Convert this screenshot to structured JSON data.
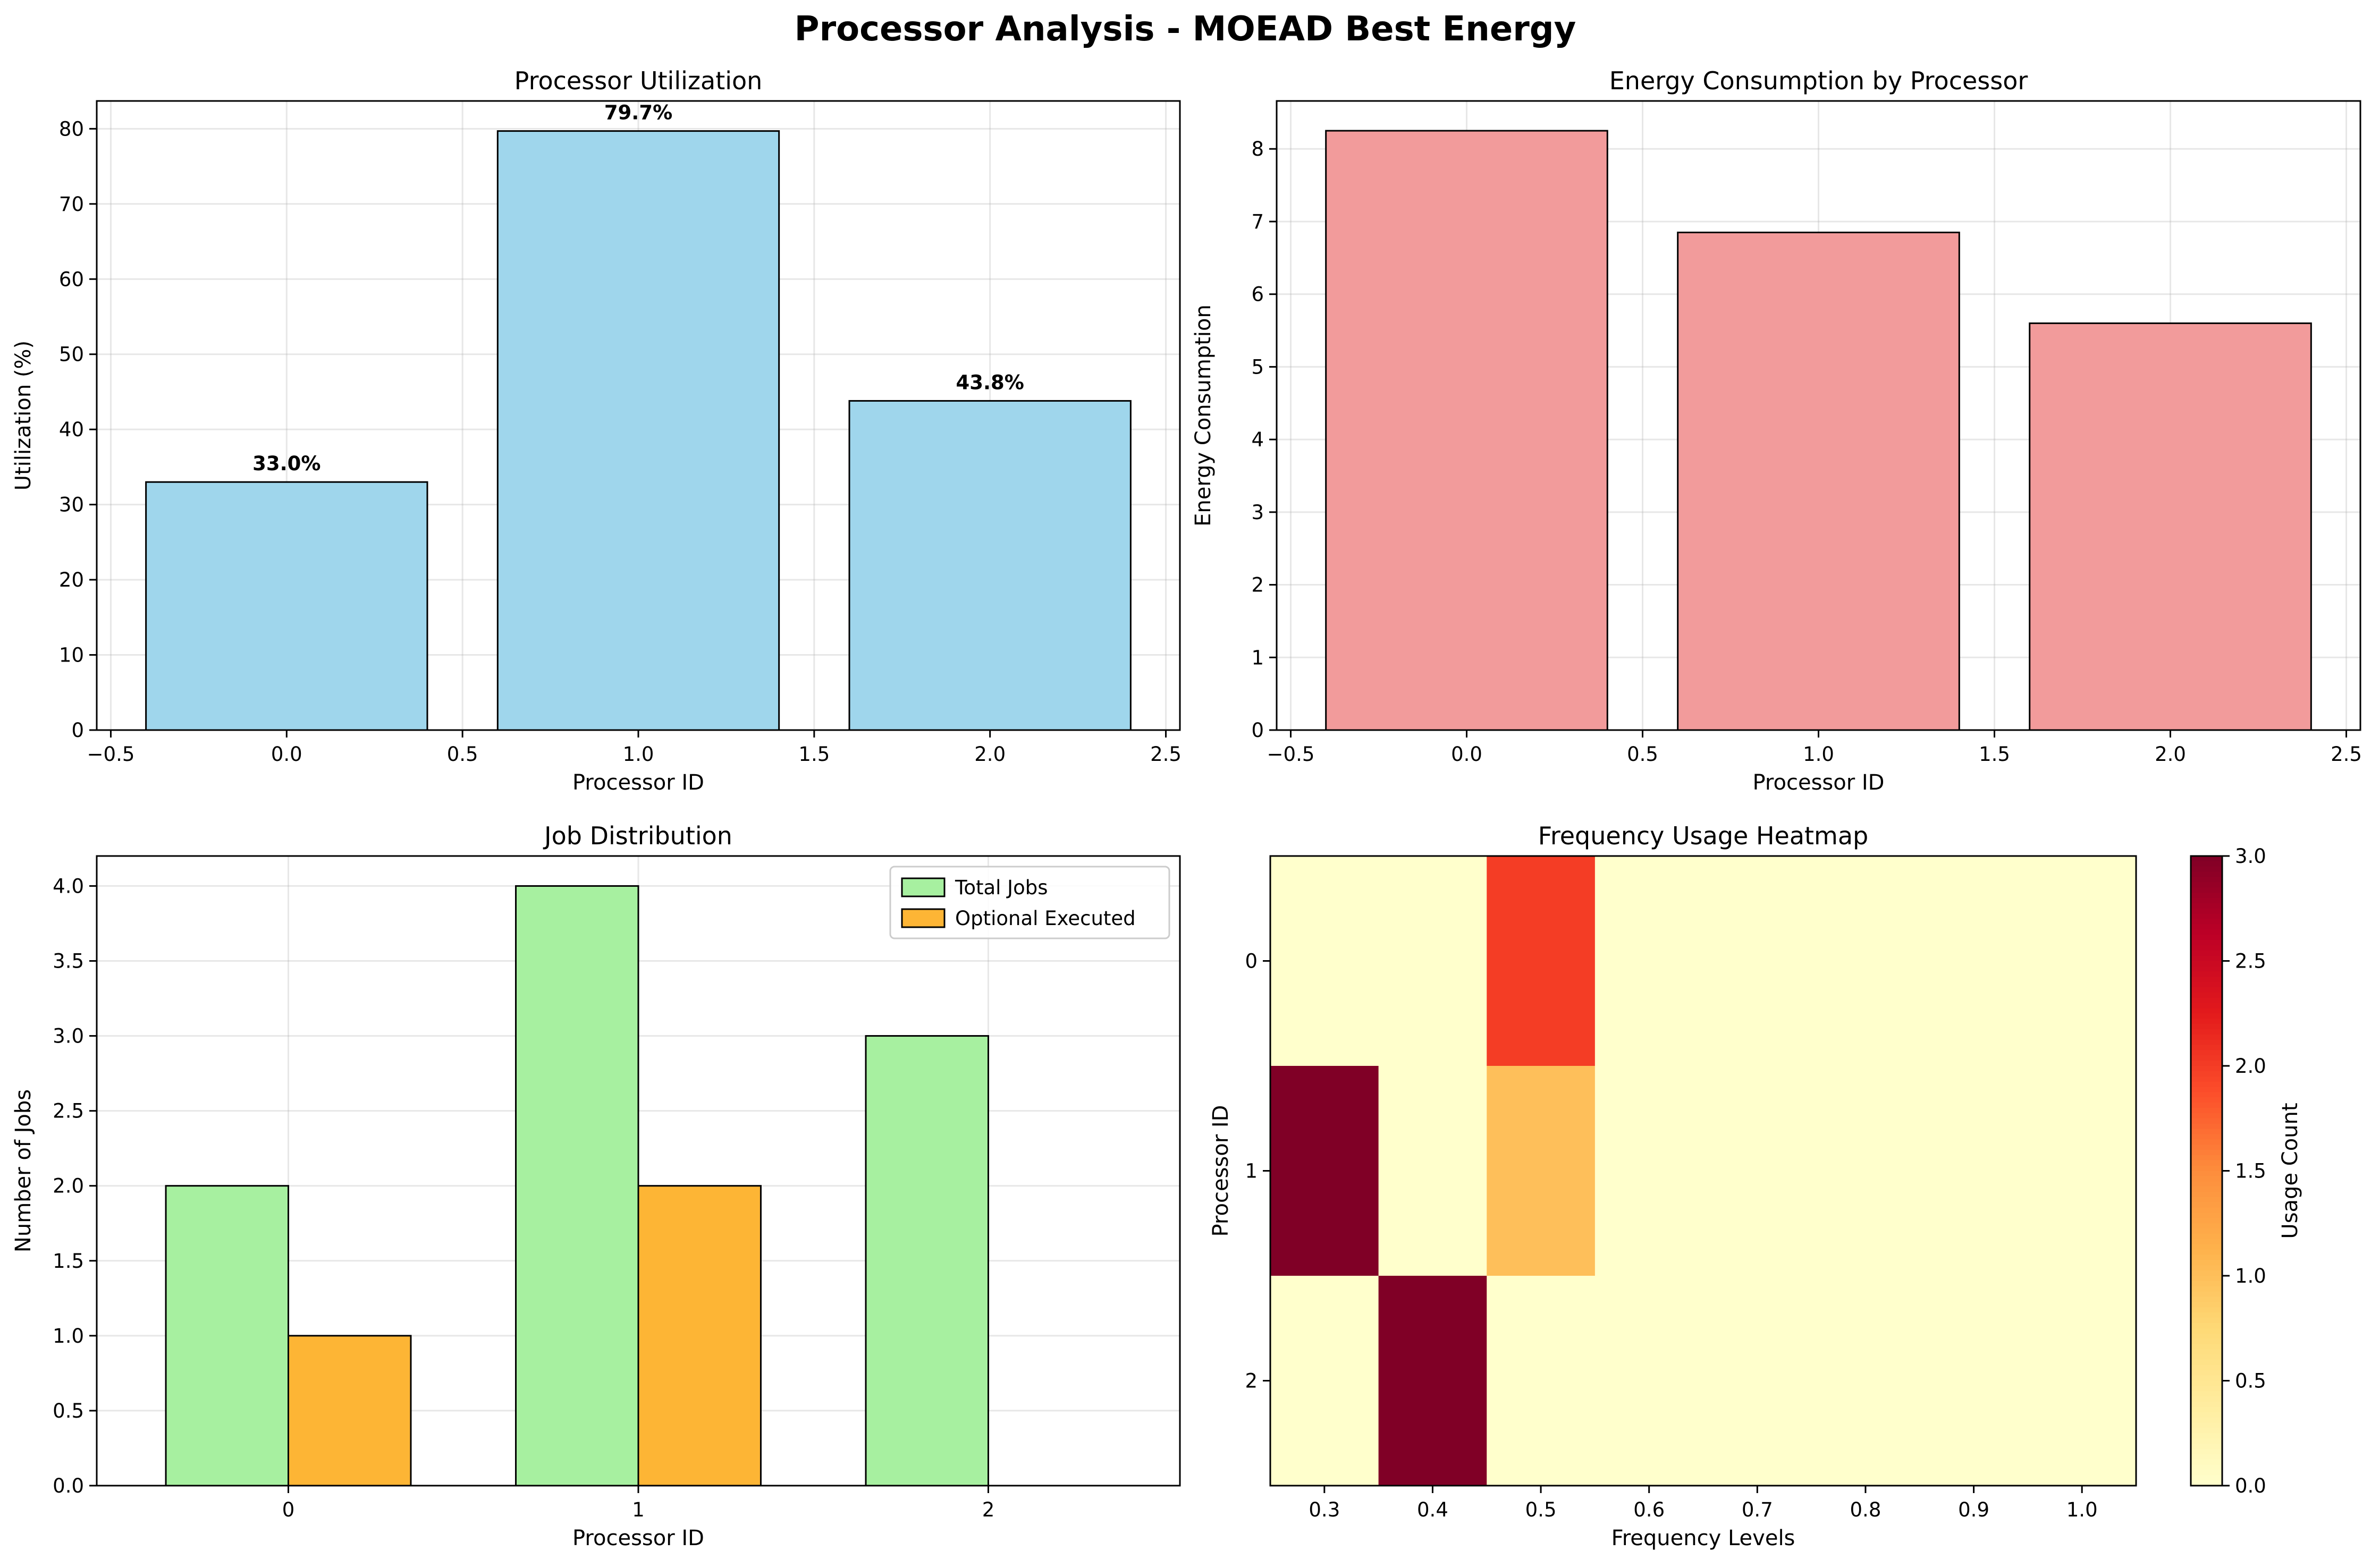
{
  "figure_title": "Processor Analysis - MOEAD Best Energy",
  "chart_data": [
    {
      "id": "utilization",
      "type": "bar",
      "title": "Processor Utilization",
      "xlabel": "Processor ID",
      "ylabel": "Utilization (%)",
      "x": [
        0,
        1,
        2
      ],
      "values": [
        33.0,
        79.7,
        43.8
      ],
      "bar_labels": [
        "33.0%",
        "79.7%",
        "43.8%"
      ],
      "bar_width": 0.8,
      "xlim": [
        -0.54,
        2.54
      ],
      "ylim": [
        0,
        83.7
      ],
      "xticks": [
        -0.5,
        0.0,
        0.5,
        1.0,
        1.5,
        2.0,
        2.5
      ],
      "xtick_labels": [
        "−0.5",
        "0.0",
        "0.5",
        "1.0",
        "1.5",
        "2.0",
        "2.5"
      ],
      "yticks": [
        0,
        10,
        20,
        30,
        40,
        50,
        60,
        70,
        80
      ],
      "ytick_labels": [
        "0",
        "10",
        "20",
        "30",
        "40",
        "50",
        "60",
        "70",
        "80"
      ],
      "color": "#9fd6ec",
      "grid": true
    },
    {
      "id": "energy",
      "type": "bar",
      "title": "Energy Consumption by Processor",
      "xlabel": "Processor ID",
      "ylabel": "Energy Consumption",
      "x": [
        0,
        1,
        2
      ],
      "values": [
        8.25,
        6.85,
        5.6
      ],
      "bar_width": 0.8,
      "xlim": [
        -0.54,
        2.54
      ],
      "ylim": [
        0,
        8.66
      ],
      "xticks": [
        -0.5,
        0.0,
        0.5,
        1.0,
        1.5,
        2.0,
        2.5
      ],
      "xtick_labels": [
        "−0.5",
        "0.0",
        "0.5",
        "1.0",
        "1.5",
        "2.0",
        "2.5"
      ],
      "yticks": [
        0,
        1,
        2,
        3,
        4,
        5,
        6,
        7,
        8
      ],
      "ytick_labels": [
        "0",
        "1",
        "2",
        "3",
        "4",
        "5",
        "6",
        "7",
        "8"
      ],
      "color": "#f29b9b",
      "grid": true
    },
    {
      "id": "jobs",
      "type": "bar",
      "title": "Job Distribution",
      "xlabel": "Processor ID",
      "ylabel": "Number of Jobs",
      "categories": [
        "0",
        "1",
        "2"
      ],
      "x": [
        0,
        1,
        2
      ],
      "bar_width": 0.35,
      "series": [
        {
          "name": "Total Jobs",
          "values": [
            2,
            4,
            3
          ],
          "color": "#a7f0a0",
          "offset": -0.175
        },
        {
          "name": "Optional Executed",
          "values": [
            1,
            2,
            0
          ],
          "color": "#fdb535",
          "offset": 0.175
        }
      ],
      "xlim": [
        -0.5475,
        2.5475
      ],
      "ylim": [
        0,
        4.2
      ],
      "yticks": [
        0.0,
        0.5,
        1.0,
        1.5,
        2.0,
        2.5,
        3.0,
        3.5,
        4.0
      ],
      "ytick_labels": [
        "0.0",
        "0.5",
        "1.0",
        "1.5",
        "2.0",
        "2.5",
        "3.0",
        "3.5",
        "4.0"
      ],
      "legend": "top-right",
      "grid": true
    },
    {
      "id": "freq_heatmap",
      "type": "heatmap",
      "title": "Frequency Usage Heatmap",
      "xlabel": "Frequency Levels",
      "ylabel": "Processor ID",
      "x_categories": [
        "0.3",
        "0.4",
        "0.5",
        "0.6",
        "0.7",
        "0.8",
        "0.9",
        "1.0"
      ],
      "y_categories": [
        "0",
        "1",
        "2"
      ],
      "values": [
        [
          0,
          0,
          2,
          0,
          0,
          0,
          0,
          0
        ],
        [
          3,
          0,
          1,
          0,
          0,
          0,
          0,
          0
        ],
        [
          0,
          3,
          0,
          0,
          0,
          0,
          0,
          0
        ]
      ],
      "colormap": "YlOrRd",
      "vmin": 0,
      "vmax": 3,
      "colorbar_label": "Usage Count",
      "colorbar_ticks": [
        0.0,
        0.5,
        1.0,
        1.5,
        2.0,
        2.5,
        3.0
      ],
      "colorbar_tick_labels": [
        "0.0",
        "0.5",
        "1.0",
        "1.5",
        "2.0",
        "2.5",
        "3.0"
      ],
      "colorbar_colors": [
        "#ffffcc",
        "#ffeda0",
        "#fed976",
        "#feb24c",
        "#fd8d3c",
        "#fc4e2a",
        "#e31a1c",
        "#bd0026",
        "#800026"
      ]
    }
  ]
}
